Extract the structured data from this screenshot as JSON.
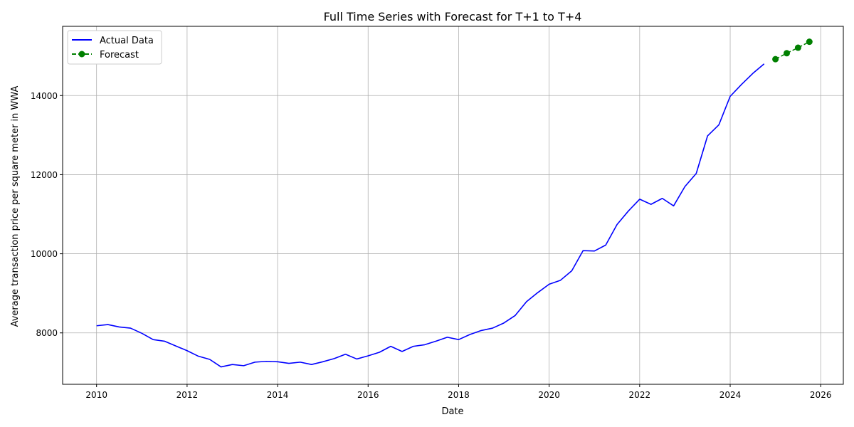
{
  "chart_data": {
    "type": "line",
    "title": "Full Time Series with Forecast for T+1 to T+4",
    "xlabel": "Date",
    "ylabel": "Average transaction price per square meter in WWA",
    "x_ticks": [
      "2010",
      "2012",
      "2014",
      "2016",
      "2018",
      "2020",
      "2022",
      "2024",
      "2026"
    ],
    "y_ticks": [
      8000,
      10000,
      12000,
      14000
    ],
    "xlim": [
      "2009-04-01",
      "2026-07-01"
    ],
    "ylim": [
      6700,
      15750
    ],
    "grid": true,
    "legend_position": "top-left",
    "series": [
      {
        "name": "Actual Data",
        "color": "#0000ff",
        "style": "solid",
        "points": [
          [
            "2010-01-01",
            8180
          ],
          [
            "2010-04-01",
            8210
          ],
          [
            "2010-07-01",
            8150
          ],
          [
            "2010-10-01",
            8120
          ],
          [
            "2011-01-01",
            7990
          ],
          [
            "2011-04-01",
            7830
          ],
          [
            "2011-07-01",
            7790
          ],
          [
            "2011-10-01",
            7670
          ],
          [
            "2012-01-01",
            7550
          ],
          [
            "2012-04-01",
            7410
          ],
          [
            "2012-07-01",
            7330
          ],
          [
            "2012-10-01",
            7140
          ],
          [
            "2013-01-01",
            7200
          ],
          [
            "2013-04-01",
            7170
          ],
          [
            "2013-07-01",
            7260
          ],
          [
            "2013-10-01",
            7280
          ],
          [
            "2014-01-01",
            7270
          ],
          [
            "2014-04-01",
            7230
          ],
          [
            "2014-07-01",
            7260
          ],
          [
            "2014-10-01",
            7200
          ],
          [
            "2015-01-01",
            7270
          ],
          [
            "2015-04-01",
            7350
          ],
          [
            "2015-07-01",
            7460
          ],
          [
            "2015-10-01",
            7340
          ],
          [
            "2016-01-01",
            7420
          ],
          [
            "2016-04-01",
            7510
          ],
          [
            "2016-07-01",
            7660
          ],
          [
            "2016-10-01",
            7530
          ],
          [
            "2017-01-01",
            7660
          ],
          [
            "2017-04-01",
            7700
          ],
          [
            "2017-07-01",
            7790
          ],
          [
            "2017-10-01",
            7890
          ],
          [
            "2018-01-01",
            7830
          ],
          [
            "2018-04-01",
            7960
          ],
          [
            "2018-07-01",
            8060
          ],
          [
            "2018-10-01",
            8120
          ],
          [
            "2019-01-01",
            8250
          ],
          [
            "2019-04-01",
            8440
          ],
          [
            "2019-07-01",
            8790
          ],
          [
            "2019-10-01",
            9020
          ],
          [
            "2020-01-01",
            9230
          ],
          [
            "2020-04-01",
            9330
          ],
          [
            "2020-07-01",
            9570
          ],
          [
            "2020-10-01",
            10080
          ],
          [
            "2021-01-01",
            10070
          ],
          [
            "2021-04-01",
            10220
          ],
          [
            "2021-07-01",
            10740
          ],
          [
            "2021-10-01",
            11080
          ],
          [
            "2022-01-01",
            11380
          ],
          [
            "2022-04-01",
            11250
          ],
          [
            "2022-07-01",
            11400
          ],
          [
            "2022-10-01",
            11210
          ],
          [
            "2023-01-01",
            11700
          ],
          [
            "2023-04-01",
            12030
          ],
          [
            "2023-07-01",
            12980
          ],
          [
            "2023-10-01",
            13260
          ],
          [
            "2024-01-01",
            13980
          ],
          [
            "2024-04-01",
            14280
          ],
          [
            "2024-07-01",
            14560
          ],
          [
            "2024-10-01",
            14800
          ]
        ]
      },
      {
        "name": "Forecast",
        "color": "#008000",
        "style": "dashed-with-markers",
        "points": [
          [
            "2025-01-01",
            14920
          ],
          [
            "2025-04-01",
            15070
          ],
          [
            "2025-07-01",
            15210
          ],
          [
            "2025-10-01",
            15360
          ]
        ]
      }
    ]
  }
}
